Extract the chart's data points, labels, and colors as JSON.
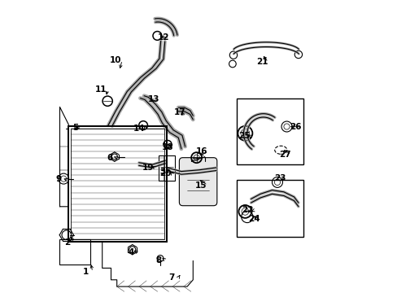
{
  "bg_color": "#ffffff",
  "line_color": "#000000",
  "font_size": 7.5,
  "lw": 0.8,
  "label_positions": {
    "1": [
      0.115,
      0.072,
      0.13,
      0.105
    ],
    "2": [
      0.052,
      0.172,
      0.058,
      0.198
    ],
    "3": [
      0.375,
      0.415,
      0.39,
      0.43
    ],
    "4": [
      0.268,
      0.138,
      0.272,
      0.15
    ],
    "5": [
      0.078,
      0.565,
      0.065,
      0.56
    ],
    "6": [
      0.196,
      0.462,
      0.21,
      0.465
    ],
    "7": [
      0.408,
      0.053,
      0.44,
      0.068
    ],
    "8": [
      0.363,
      0.112,
      0.368,
      0.125
    ],
    "9": [
      0.022,
      0.388,
      0.038,
      0.39
    ],
    "10": [
      0.216,
      0.795,
      0.228,
      0.758
    ],
    "11": [
      0.166,
      0.695,
      0.183,
      0.668
    ],
    "12": [
      0.378,
      0.872,
      0.36,
      0.875
    ],
    "13": [
      0.345,
      0.66,
      0.325,
      0.655
    ],
    "14": [
      0.296,
      0.562,
      0.308,
      0.578
    ],
    "15": [
      0.508,
      0.368,
      0.496,
      0.39
    ],
    "16": [
      0.51,
      0.482,
      0.496,
      0.468
    ],
    "17": [
      0.434,
      0.618,
      0.432,
      0.602
    ],
    "18": [
      0.393,
      0.498,
      0.39,
      0.51
    ],
    "19": [
      0.326,
      0.428,
      0.332,
      0.438
    ],
    "20": [
      0.385,
      0.408,
      0.397,
      0.42
    ],
    "21": [
      0.715,
      0.788,
      0.715,
      0.815
    ],
    "22": [
      0.665,
      0.282,
      0.67,
      0.278
    ],
    "23": [
      0.777,
      0.392,
      0.772,
      0.382
    ],
    "24": [
      0.688,
      0.252,
      0.678,
      0.265
    ],
    "25": [
      0.655,
      0.535,
      0.668,
      0.54
    ],
    "26": [
      0.83,
      0.567,
      0.804,
      0.568
    ],
    "27": [
      0.793,
      0.473,
      0.782,
      0.492
    ]
  }
}
